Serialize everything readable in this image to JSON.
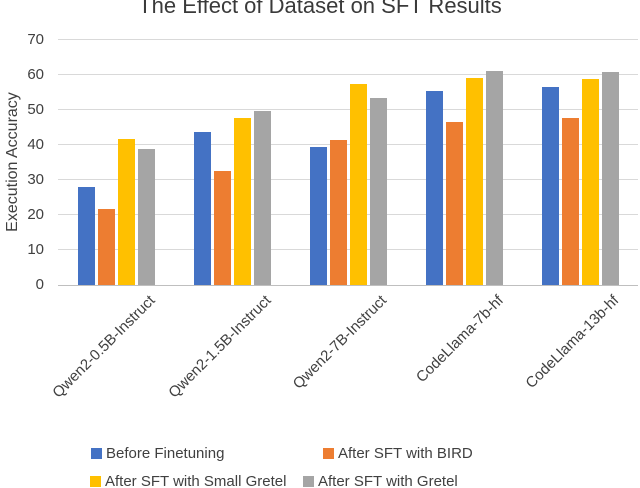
{
  "chart_data": {
    "type": "bar",
    "title": "The Effect of Dataset on SFT Results",
    "xlabel": "",
    "ylabel": "Execution Accuracy",
    "ylim": [
      0,
      70
    ],
    "yticks": [
      0,
      10,
      20,
      30,
      40,
      50,
      60,
      70
    ],
    "grid": true,
    "legend_position": "bottom",
    "categories": [
      "Qwen2-0.5B-Instruct",
      "Qwen2-1.5B-Instruct",
      "Qwen2-7B-Instruct",
      "CodeLlama-7b-hf",
      "CodeLlama-13b-hf"
    ],
    "series": [
      {
        "name": "Before Finetuning",
        "color": "#4472C4",
        "values": [
          28.0,
          43.8,
          39.4,
          55.5,
          56.5
        ]
      },
      {
        "name": "After SFT with BIRD",
        "color": "#ED7D31",
        "values": [
          21.7,
          32.6,
          41.5,
          46.7,
          47.7
        ]
      },
      {
        "name": "After SFT with Small Gretel",
        "color": "#FFC000",
        "values": [
          41.7,
          47.7,
          57.5,
          59.1,
          58.9
        ]
      },
      {
        "name": "After SFT with Gretel",
        "color": "#A5A5A5",
        "values": [
          39.0,
          49.7,
          53.4,
          61.1,
          61.0
        ]
      }
    ]
  },
  "colors": {
    "gridline": "#D9D9D9",
    "axis_line": "#BFBFBF",
    "text": "#404040",
    "background": "#FFFFFF"
  }
}
